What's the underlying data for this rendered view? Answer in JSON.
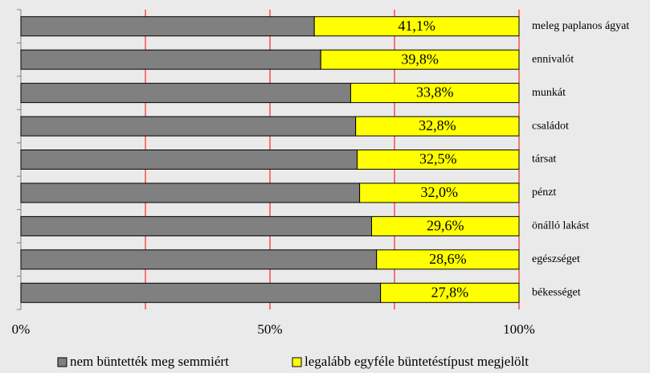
{
  "chart_data": {
    "type": "stacked-bar-horizontal",
    "categories": [
      "meleg paplanos ágyat",
      "ennivalót",
      "munkát",
      "családot",
      "társat",
      "pénzt",
      "önálló lakást",
      "egészséget",
      "békességet"
    ],
    "series": [
      {
        "name": "nem büntették meg semmiért",
        "color": "#808080",
        "values": [
          58.9,
          60.2,
          66.2,
          67.2,
          67.5,
          68.0,
          70.4,
          71.4,
          72.2
        ]
      },
      {
        "name": "legalább egyféle büntetéstípust megjelölt",
        "color": "#ffff00",
        "values": [
          41.1,
          39.8,
          33.8,
          32.8,
          32.5,
          32.0,
          29.6,
          28.6,
          27.8
        ],
        "value_labels": [
          "41,1%",
          "39,8%",
          "33,8%",
          "32,8%",
          "32,5%",
          "32,0%",
          "29,6%",
          "28,6%",
          "27,8%"
        ]
      }
    ],
    "xlim": [
      0,
      100
    ],
    "xticks": [
      {
        "value": 0,
        "label": "0%"
      },
      {
        "value": 50,
        "label": "50%"
      },
      {
        "value": 100,
        "label": "100%"
      }
    ],
    "grid": true,
    "grid_color": "#ff0000",
    "legend": "bottom"
  }
}
